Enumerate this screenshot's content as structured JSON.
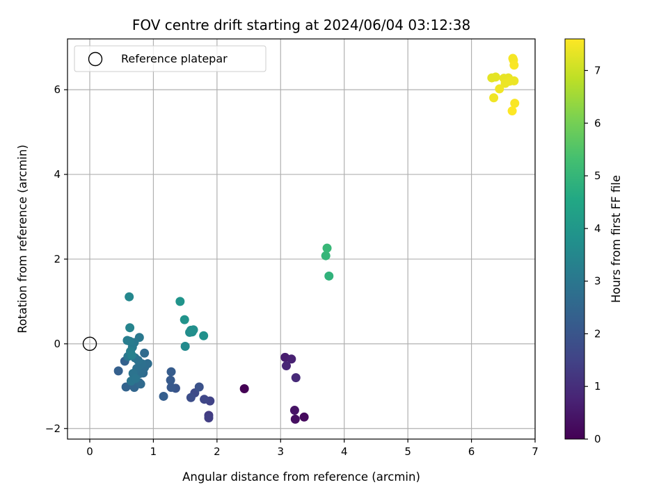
{
  "chart_data": {
    "type": "scatter",
    "title": "FOV centre drift starting at 2024/06/04 03:12:38",
    "xlabel": "Angular distance from reference (arcmin)",
    "ylabel": "Rotation from reference (arcmin)",
    "xlim": [
      -0.35,
      7.0
    ],
    "ylim": [
      -2.25,
      7.2
    ],
    "xticks": [
      0,
      1,
      2,
      3,
      4,
      5,
      6,
      7
    ],
    "yticks": [
      -2,
      0,
      2,
      4,
      6
    ],
    "grid": true,
    "legend": {
      "placement": "top-left",
      "entries": [
        "Reference platepar"
      ]
    },
    "reference_point": {
      "x": 0,
      "y": 0,
      "label": "Reference platepar"
    },
    "colorbar": {
      "label": "Hours from first FF file",
      "range": [
        0,
        7.6
      ],
      "ticks": [
        0,
        1,
        2,
        3,
        4,
        5,
        6,
        7
      ],
      "colormap": "viridis"
    },
    "points": [
      {
        "x": 2.43,
        "y": -1.06,
        "c": 0.0
      },
      {
        "x": 3.37,
        "y": -1.73,
        "c": 0.2
      },
      {
        "x": 3.23,
        "y": -1.78,
        "c": 0.3
      },
      {
        "x": 3.22,
        "y": -1.57,
        "c": 0.4
      },
      {
        "x": 3.07,
        "y": -0.32,
        "c": 0.6
      },
      {
        "x": 3.17,
        "y": -0.36,
        "c": 0.7
      },
      {
        "x": 3.09,
        "y": -0.52,
        "c": 0.8
      },
      {
        "x": 3.24,
        "y": -0.8,
        "c": 0.9
      },
      {
        "x": 1.87,
        "y": -1.69,
        "c": 1.3
      },
      {
        "x": 1.87,
        "y": -1.75,
        "c": 1.4
      },
      {
        "x": 1.89,
        "y": -1.35,
        "c": 1.5
      },
      {
        "x": 1.8,
        "y": -1.31,
        "c": 1.6
      },
      {
        "x": 1.65,
        "y": -1.16,
        "c": 1.7
      },
      {
        "x": 1.59,
        "y": -1.27,
        "c": 1.8
      },
      {
        "x": 1.72,
        "y": -1.02,
        "c": 1.9
      },
      {
        "x": 1.35,
        "y": -1.05,
        "c": 2.0
      },
      {
        "x": 1.28,
        "y": -1.03,
        "c": 2.1
      },
      {
        "x": 1.27,
        "y": -0.86,
        "c": 2.15
      },
      {
        "x": 1.28,
        "y": -0.66,
        "c": 2.2
      },
      {
        "x": 1.16,
        "y": -1.24,
        "c": 2.25
      },
      {
        "x": 0.45,
        "y": -0.64,
        "c": 2.3
      },
      {
        "x": 0.55,
        "y": -0.41,
        "c": 2.35
      },
      {
        "x": 0.57,
        "y": -1.02,
        "c": 2.4
      },
      {
        "x": 0.7,
        "y": -1.03,
        "c": 2.5
      },
      {
        "x": 0.78,
        "y": -0.92,
        "c": 2.55
      },
      {
        "x": 0.8,
        "y": -0.95,
        "c": 2.6
      },
      {
        "x": 0.84,
        "y": -0.69,
        "c": 2.6
      },
      {
        "x": 0.86,
        "y": -0.22,
        "c": 2.65
      },
      {
        "x": 0.91,
        "y": -0.47,
        "c": 2.7
      },
      {
        "x": 0.86,
        "y": -0.56,
        "c": 2.7
      },
      {
        "x": 0.79,
        "y": -0.7,
        "c": 2.75
      },
      {
        "x": 0.74,
        "y": -0.58,
        "c": 2.8
      },
      {
        "x": 0.82,
        "y": -0.47,
        "c": 2.8
      },
      {
        "x": 0.76,
        "y": -0.39,
        "c": 2.85
      },
      {
        "x": 0.71,
        "y": -0.33,
        "c": 2.9
      },
      {
        "x": 0.68,
        "y": -0.7,
        "c": 2.9
      },
      {
        "x": 0.65,
        "y": -0.88,
        "c": 2.95
      },
      {
        "x": 0.72,
        "y": -0.82,
        "c": 2.95
      },
      {
        "x": 0.6,
        "y": -0.3,
        "c": 3.0
      },
      {
        "x": 0.7,
        "y": 0.03,
        "c": 3.05
      },
      {
        "x": 0.78,
        "y": 0.15,
        "c": 3.05
      },
      {
        "x": 0.67,
        "y": -0.08,
        "c": 3.1
      },
      {
        "x": 0.63,
        "y": 0.06,
        "c": 3.15
      },
      {
        "x": 0.59,
        "y": 0.08,
        "c": 3.2
      },
      {
        "x": 0.64,
        "y": -0.18,
        "c": 3.25
      },
      {
        "x": 0.66,
        "y": -0.27,
        "c": 3.3
      },
      {
        "x": 0.63,
        "y": 0.38,
        "c": 3.4
      },
      {
        "x": 0.62,
        "y": 1.11,
        "c": 3.5
      },
      {
        "x": 1.5,
        "y": -0.06,
        "c": 3.6
      },
      {
        "x": 1.57,
        "y": 0.27,
        "c": 3.65
      },
      {
        "x": 1.61,
        "y": 0.28,
        "c": 3.7
      },
      {
        "x": 1.59,
        "y": 0.32,
        "c": 3.7
      },
      {
        "x": 1.63,
        "y": 0.33,
        "c": 3.75
      },
      {
        "x": 1.79,
        "y": 0.19,
        "c": 3.8
      },
      {
        "x": 1.49,
        "y": 0.57,
        "c": 3.85
      },
      {
        "x": 1.42,
        "y": 1.0,
        "c": 3.9
      },
      {
        "x": 3.76,
        "y": 1.6,
        "c": 4.9
      },
      {
        "x": 3.71,
        "y": 2.08,
        "c": 5.0
      },
      {
        "x": 3.73,
        "y": 2.26,
        "c": 5.05
      },
      {
        "x": 6.32,
        "y": 6.28,
        "c": 7.3
      },
      {
        "x": 6.38,
        "y": 6.3,
        "c": 7.3
      },
      {
        "x": 6.51,
        "y": 6.27,
        "c": 7.35
      },
      {
        "x": 6.58,
        "y": 6.28,
        "c": 7.35
      },
      {
        "x": 6.6,
        "y": 6.2,
        "c": 7.4
      },
      {
        "x": 6.67,
        "y": 6.21,
        "c": 7.4
      },
      {
        "x": 6.53,
        "y": 6.15,
        "c": 7.4
      },
      {
        "x": 6.44,
        "y": 6.02,
        "c": 7.45
      },
      {
        "x": 6.35,
        "y": 5.81,
        "c": 7.45
      },
      {
        "x": 6.65,
        "y": 6.74,
        "c": 7.5
      },
      {
        "x": 6.66,
        "y": 6.7,
        "c": 7.5
      },
      {
        "x": 6.67,
        "y": 6.58,
        "c": 7.55
      },
      {
        "x": 6.68,
        "y": 5.68,
        "c": 7.55
      },
      {
        "x": 6.64,
        "y": 5.5,
        "c": 7.6
      }
    ]
  }
}
